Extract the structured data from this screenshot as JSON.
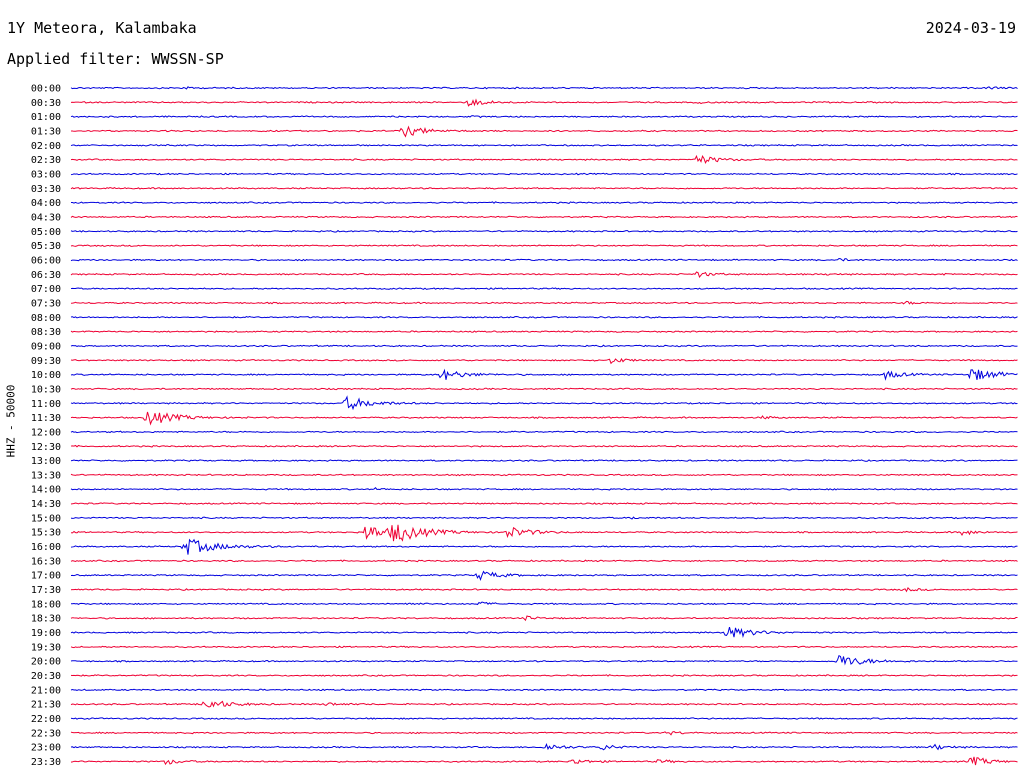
{
  "header": {
    "station": "1Y Meteora, Kalambaka",
    "date": "2024-03-19",
    "filter": "Applied filter: WWSSN-SP"
  },
  "chart_data": {
    "type": "line",
    "title": "1Y Meteora, Kalambaka",
    "ylabel": "HHZ - 50000",
    "colors": [
      "#0000dd",
      "#ee0033"
    ],
    "rows": [
      {
        "label": "00:00",
        "events": [
          {
            "t": 0.12,
            "a": 1
          },
          {
            "t": 0.97,
            "a": 1.5
          }
        ]
      },
      {
        "label": "00:30",
        "events": [
          {
            "t": 0.42,
            "a": 4
          },
          {
            "t": 0.66,
            "a": 1
          }
        ]
      },
      {
        "label": "01:00",
        "events": [
          {
            "t": 0.42,
            "a": 0.8
          }
        ]
      },
      {
        "label": "01:30",
        "events": [
          {
            "t": 0.35,
            "a": 6
          }
        ]
      },
      {
        "label": "02:00",
        "events": []
      },
      {
        "label": "02:30",
        "events": [
          {
            "t": 0.66,
            "a": 5
          }
        ]
      },
      {
        "label": "03:00",
        "events": []
      },
      {
        "label": "03:30",
        "events": []
      },
      {
        "label": "04:00",
        "events": []
      },
      {
        "label": "04:30",
        "events": []
      },
      {
        "label": "05:00",
        "events": []
      },
      {
        "label": "05:30",
        "events": []
      },
      {
        "label": "06:00",
        "events": [
          {
            "t": 0.81,
            "a": 1.5
          }
        ]
      },
      {
        "label": "06:30",
        "events": [
          {
            "t": 0.66,
            "a": 3
          },
          {
            "t": 0.8,
            "a": 1
          },
          {
            "t": 0.92,
            "a": 1
          }
        ]
      },
      {
        "label": "07:00",
        "events": []
      },
      {
        "label": "07:30",
        "events": [
          {
            "t": 0.88,
            "a": 1.5
          }
        ]
      },
      {
        "label": "08:00",
        "events": []
      },
      {
        "label": "08:30",
        "events": []
      },
      {
        "label": "09:00",
        "events": []
      },
      {
        "label": "09:30",
        "events": [
          {
            "t": 0.57,
            "a": 3
          }
        ]
      },
      {
        "label": "10:00",
        "events": [
          {
            "t": 0.39,
            "a": 6
          },
          {
            "t": 0.86,
            "a": 4
          },
          {
            "t": 0.95,
            "a": 7
          }
        ]
      },
      {
        "label": "10:30",
        "events": []
      },
      {
        "label": "11:00",
        "events": [
          {
            "t": 0.29,
            "a": 7
          }
        ]
      },
      {
        "label": "11:30",
        "events": [
          {
            "t": 0.08,
            "a": 8
          },
          {
            "t": 0.73,
            "a": 1.5
          }
        ]
      },
      {
        "label": "12:00",
        "events": []
      },
      {
        "label": "12:30",
        "events": []
      },
      {
        "label": "13:00",
        "events": []
      },
      {
        "label": "13:30",
        "events": []
      },
      {
        "label": "14:00",
        "events": [
          {
            "t": 0.32,
            "a": 1
          }
        ]
      },
      {
        "label": "14:30",
        "events": []
      },
      {
        "label": "15:00",
        "events": [
          {
            "t": 0.59,
            "a": 1
          }
        ]
      },
      {
        "label": "15:30",
        "events": [
          {
            "t": 0.31,
            "a": 8
          },
          {
            "t": 0.34,
            "a": 9
          },
          {
            "t": 0.46,
            "a": 6
          },
          {
            "t": 0.94,
            "a": 3
          }
        ]
      },
      {
        "label": "16:00",
        "events": [
          {
            "t": 0.12,
            "a": 9
          }
        ]
      },
      {
        "label": "16:30",
        "events": []
      },
      {
        "label": "17:00",
        "events": [
          {
            "t": 0.43,
            "a": 5
          }
        ]
      },
      {
        "label": "17:30",
        "events": [
          {
            "t": 0.88,
            "a": 2
          }
        ]
      },
      {
        "label": "18:00",
        "events": [
          {
            "t": 0.35,
            "a": 1.5
          },
          {
            "t": 0.43,
            "a": 2
          }
        ]
      },
      {
        "label": "18:30",
        "events": [
          {
            "t": 0.48,
            "a": 2
          }
        ]
      },
      {
        "label": "19:00",
        "events": [
          {
            "t": 0.69,
            "a": 7
          }
        ]
      },
      {
        "label": "19:30",
        "events": []
      },
      {
        "label": "20:00",
        "events": [
          {
            "t": 0.81,
            "a": 7
          }
        ]
      },
      {
        "label": "20:30",
        "events": []
      },
      {
        "label": "21:00",
        "events": []
      },
      {
        "label": "21:30",
        "events": [
          {
            "t": 0.14,
            "a": 6
          },
          {
            "t": 0.27,
            "a": 2
          }
        ]
      },
      {
        "label": "22:00",
        "events": []
      },
      {
        "label": "22:30",
        "events": [
          {
            "t": 0.63,
            "a": 2
          }
        ]
      },
      {
        "label": "23:00",
        "events": [
          {
            "t": 0.5,
            "a": 4
          },
          {
            "t": 0.56,
            "a": 3
          },
          {
            "t": 0.91,
            "a": 3
          }
        ]
      },
      {
        "label": "23:30",
        "events": [
          {
            "t": 0.1,
            "a": 3
          },
          {
            "t": 0.53,
            "a": 3
          },
          {
            "t": 0.62,
            "a": 2
          },
          {
            "t": 0.95,
            "a": 5
          }
        ]
      }
    ]
  }
}
